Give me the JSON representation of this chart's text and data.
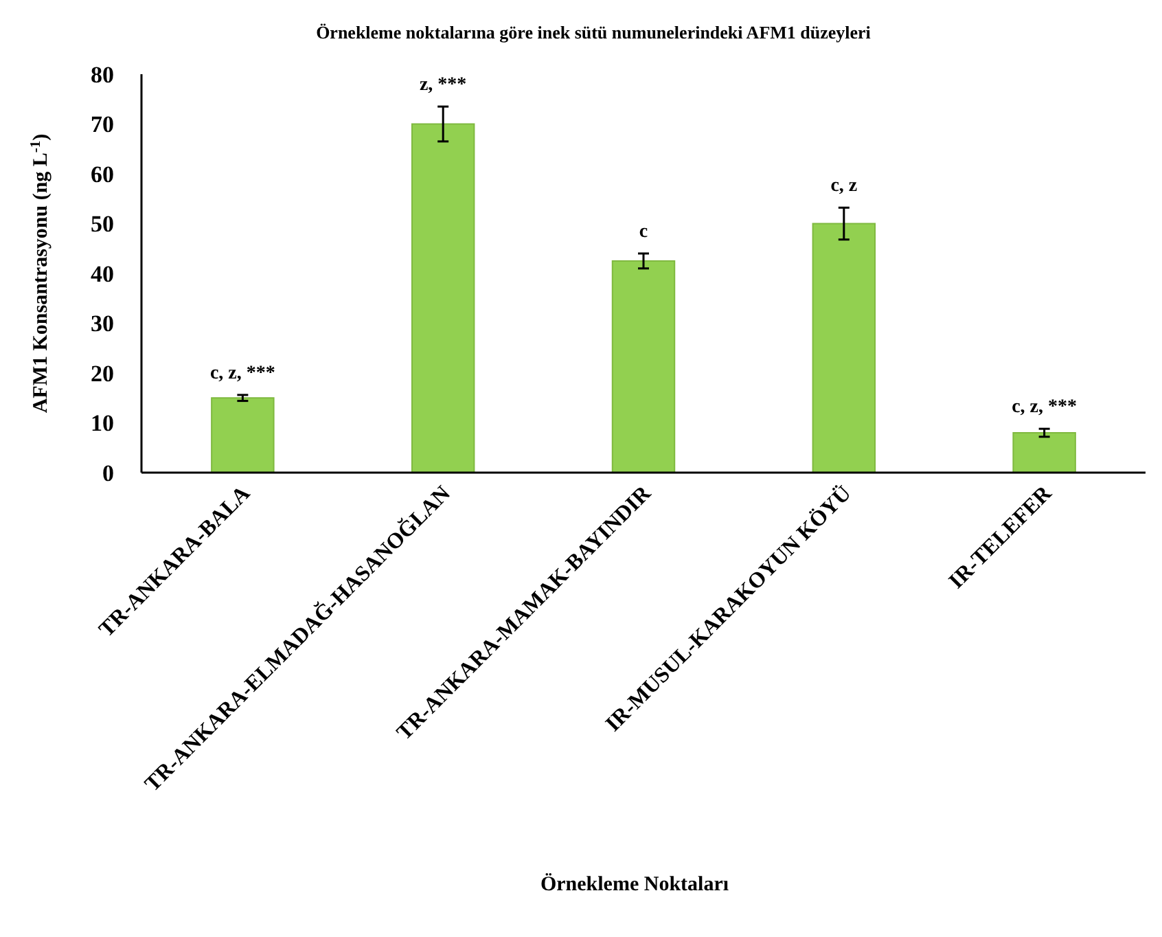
{
  "chart_data": {
    "type": "bar",
    "title": "Örnekleme noktalarına göre inek sütü numunelerindeki AFM1 düzeyleri",
    "xlabel": "Örnekleme Noktaları",
    "ylabel": "AFM1 Konsantrasyonu (ng L$^{-1}$)",
    "categories": [
      "TR-ANKARA-BALA",
      "TR-ANKARA-ELMADAĞ-HASANOĞLAN",
      "TR-ANKARA-MAMAK-BAYINDIR",
      "IR-MUSUL-KARAKOYUN KÖYÜ",
      "IR-TELEFER"
    ],
    "values": [
      15,
      70,
      42.5,
      50,
      8
    ],
    "errors": [
      0.6,
      3.5,
      1.5,
      3.2,
      0.8
    ],
    "color": "#92d050",
    "ylim": [
      0,
      80
    ],
    "yticks": [
      0,
      10,
      20,
      30,
      40,
      50,
      60,
      70,
      80
    ],
    "grid": false,
    "annotations": [
      {
        "text": "c, z, ***",
        "x": "TR-ANKARA-BALA",
        "y": 15.6
      },
      {
        "text": "z, ***",
        "x": "TR-ANKARA-ELMADAĞ-HASANOĞLAN",
        "y": 73.5
      },
      {
        "text": "c",
        "x": "TR-ANKARA-MAMAK-BAYINDIR",
        "y": 44
      },
      {
        "text": "c, z",
        "x": "IR-MUSUL-KARAKOYUN KÖYÜ",
        "y": 53.2
      },
      {
        "text": "c, z, ***",
        "x": "IR-TELEFER",
        "y": 8.8
      }
    ]
  }
}
